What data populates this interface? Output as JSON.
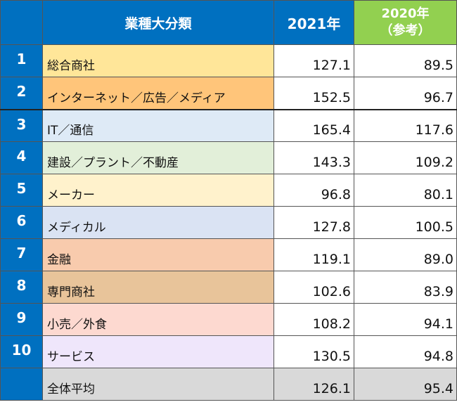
{
  "headers": {
    "category": "業種大分類",
    "y2021": "2021年",
    "y2020_line1": "2020年",
    "y2020_line2": "（参考）"
  },
  "colors": {
    "header_blue": "#0070c0",
    "header_green": "#92d050",
    "average_gray": "#d9d9d9"
  },
  "rows": [
    {
      "no": "1",
      "category": "総合商社",
      "y2021": "127.1",
      "y2020": "89.5",
      "color": "#ffe699"
    },
    {
      "no": "2",
      "category": "インターネット／広告／メディア",
      "y2021": "152.5",
      "y2020": "96.7",
      "color": "#ffc57a"
    },
    {
      "no": "3",
      "category": "IT／通信",
      "y2021": "165.4",
      "y2020": "117.6",
      "color": "#deeaf6"
    },
    {
      "no": "4",
      "category": "建設／プラント／不動産",
      "y2021": "143.3",
      "y2020": "109.2",
      "color": "#e2efd9"
    },
    {
      "no": "5",
      "category": "メーカー",
      "y2021": "96.8",
      "y2020": "80.1",
      "color": "#fff2cc"
    },
    {
      "no": "6",
      "category": "メディカル",
      "y2021": "127.8",
      "y2020": "100.5",
      "color": "#dae3f3"
    },
    {
      "no": "7",
      "category": "金融",
      "y2021": "119.1",
      "y2020": "89.0",
      "color": "#f8cbad"
    },
    {
      "no": "8",
      "category": "専門商社",
      "y2021": "102.6",
      "y2020": "83.9",
      "color": "#e8c49a"
    },
    {
      "no": "9",
      "category": "小売／外食",
      "y2021": "108.2",
      "y2020": "94.1",
      "color": "#fdd9d0"
    },
    {
      "no": "10",
      "category": "サービス",
      "y2021": "130.5",
      "y2020": "94.8",
      "color": "#efe6fb"
    }
  ],
  "average": {
    "category": "全体平均",
    "y2021": "126.1",
    "y2020": "95.4"
  }
}
